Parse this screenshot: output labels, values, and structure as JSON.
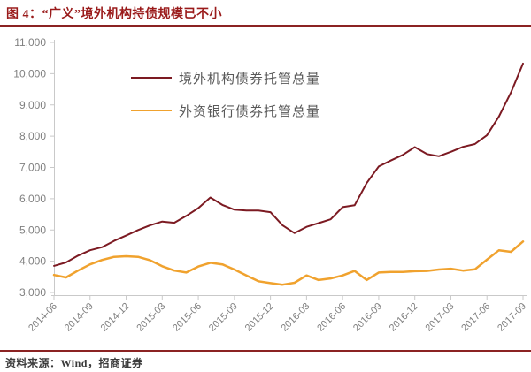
{
  "header": {
    "title": "图 4：“广义”境外机构持债规模已不小"
  },
  "footer": {
    "source": "资料来源：Wind，招商证券"
  },
  "colors": {
    "title_text": "#9A1B1B",
    "rule_line": "#8B2323",
    "axis_line": "#C9C9C9",
    "axis_text": "#808080",
    "legend_text": "#595959",
    "footer_text": "#3B3B3B"
  },
  "chart_data": {
    "type": "line",
    "title": "图 4：“广义”境外机构持债规模已不小",
    "xlabel": "",
    "ylabel": "",
    "ylim": [
      3000,
      11000
    ],
    "grid": false,
    "legend_position": "inside-top-left",
    "y_ticks": [
      3000,
      4000,
      5000,
      6000,
      7000,
      8000,
      9000,
      10000,
      11000
    ],
    "y_tick_labels": [
      "3,000",
      "4,000",
      "5,000",
      "6,000",
      "7,000",
      "8,000",
      "9,000",
      "10,000",
      "11,000"
    ],
    "x": [
      "2014-06",
      "2014-07",
      "2014-08",
      "2014-09",
      "2014-10",
      "2014-11",
      "2014-12",
      "2015-01",
      "2015-02",
      "2015-03",
      "2015-04",
      "2015-05",
      "2015-06",
      "2015-07",
      "2015-08",
      "2015-09",
      "2015-10",
      "2015-11",
      "2015-12",
      "2016-01",
      "2016-02",
      "2016-03",
      "2016-04",
      "2016-05",
      "2016-06",
      "2016-07",
      "2016-08",
      "2016-09",
      "2016-10",
      "2016-11",
      "2016-12",
      "2017-01",
      "2017-02",
      "2017-03",
      "2017-04",
      "2017-05",
      "2017-06",
      "2017-07",
      "2017-08",
      "2017-09"
    ],
    "x_tick_labels": [
      "2014-06",
      "2014-09",
      "2014-12",
      "2015-03",
      "2015-06",
      "2015-09",
      "2015-12",
      "2016-03",
      "2016-06",
      "2016-09",
      "2016-12",
      "2017-03",
      "2017-06",
      "2017-09"
    ],
    "series": [
      {
        "name": "境外机构债券托管总量",
        "color": "#7C1A22",
        "line_width": 2,
        "values": [
          3850,
          3960,
          4180,
          4350,
          4450,
          4650,
          4820,
          5000,
          5150,
          5270,
          5230,
          5450,
          5700,
          6040,
          5800,
          5650,
          5620,
          5620,
          5570,
          5150,
          4900,
          5100,
          5220,
          5340,
          5730,
          5790,
          6500,
          7030,
          7220,
          7400,
          7650,
          7430,
          7360,
          7500,
          7660,
          7750,
          8030,
          8630,
          9400,
          10325
        ]
      },
      {
        "name": "外资银行债券托管总量",
        "color": "#F0A22E",
        "line_width": 2.5,
        "values": [
          3560,
          3480,
          3700,
          3900,
          4040,
          4140,
          4160,
          4140,
          4030,
          3840,
          3700,
          3640,
          3830,
          3950,
          3900,
          3735,
          3545,
          3360,
          3300,
          3250,
          3310,
          3545,
          3400,
          3450,
          3545,
          3690,
          3400,
          3640,
          3660,
          3660,
          3680,
          3690,
          3735,
          3760,
          3700,
          3740,
          4050,
          4350,
          4300,
          4630
        ]
      }
    ]
  }
}
